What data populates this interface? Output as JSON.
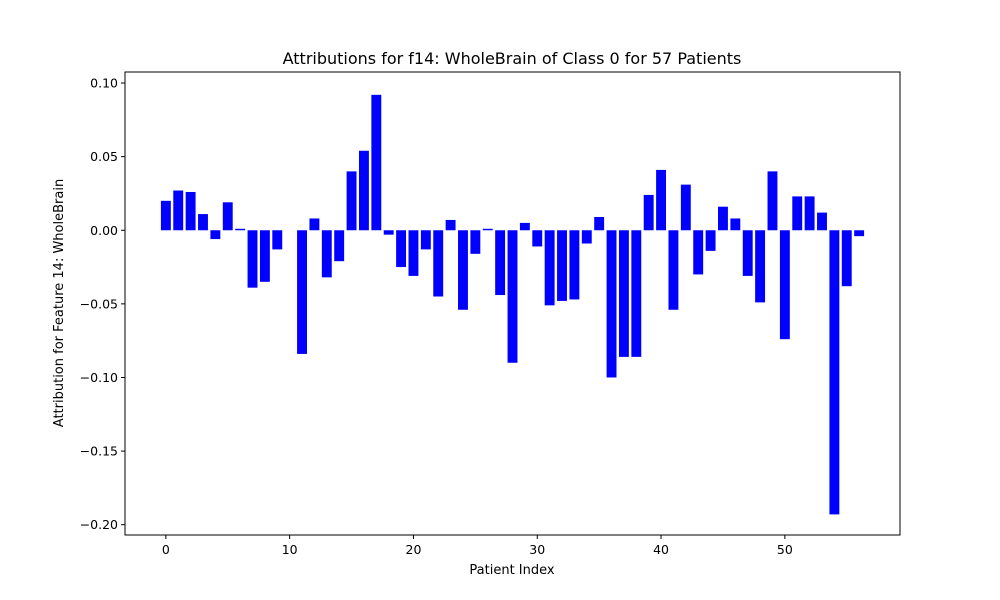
{
  "chart_data": {
    "type": "bar",
    "title": "Attributions for f14: WholeBrain of Class 0 for 57 Patients",
    "xlabel": "Patient Index",
    "ylabel": "Attribution for Feature 14: WholeBrain",
    "bar_color": "#0000ff",
    "xlim": [
      -3.3,
      59.3
    ],
    "ylim": [
      -0.207,
      0.1075
    ],
    "xticks": [
      0,
      10,
      20,
      30,
      40,
      50
    ],
    "xtick_labels": [
      "0",
      "10",
      "20",
      "30",
      "40",
      "50"
    ],
    "yticks": [
      -0.2,
      -0.15,
      -0.1,
      -0.05,
      0.0,
      0.05,
      0.1
    ],
    "ytick_labels": [
      "−0.20",
      "−0.15",
      "−0.10",
      "−0.05",
      "0.00",
      "0.05",
      "0.10"
    ],
    "x": [
      0,
      1,
      2,
      3,
      4,
      5,
      6,
      7,
      8,
      9,
      10,
      11,
      12,
      13,
      14,
      15,
      16,
      17,
      18,
      19,
      20,
      21,
      22,
      23,
      24,
      25,
      26,
      27,
      28,
      29,
      30,
      31,
      32,
      33,
      34,
      35,
      36,
      37,
      38,
      39,
      40,
      41,
      42,
      43,
      44,
      45,
      46,
      47,
      48,
      49,
      50,
      51,
      52,
      53,
      54,
      55,
      56
    ],
    "values": [
      0.02,
      0.027,
      0.026,
      0.011,
      -0.006,
      0.019,
      0.001,
      -0.039,
      -0.035,
      -0.013,
      0.0,
      -0.084,
      0.008,
      -0.032,
      -0.021,
      0.04,
      0.054,
      0.092,
      -0.003,
      -0.025,
      -0.031,
      -0.013,
      -0.045,
      0.007,
      -0.054,
      -0.016,
      0.001,
      -0.044,
      -0.09,
      0.005,
      -0.011,
      -0.051,
      -0.048,
      -0.047,
      -0.009,
      0.009,
      -0.1,
      -0.086,
      -0.086,
      0.024,
      0.041,
      -0.054,
      0.031,
      -0.03,
      -0.014,
      0.016,
      0.008,
      -0.031,
      -0.049,
      0.04,
      -0.074,
      0.023,
      0.023,
      0.012,
      -0.193,
      -0.038,
      -0.004
    ]
  }
}
